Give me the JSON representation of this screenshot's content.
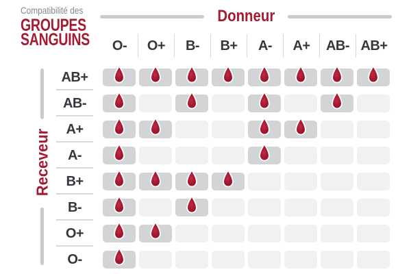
{
  "title": {
    "kicker": "Compatibilité des",
    "line1": "GROUPES",
    "line2": "SANGUINS"
  },
  "chart_data": {
    "type": "table",
    "title": "Compatibilité des GROUPES SANGUINS",
    "columns_axis_label": "Donneur",
    "rows_axis_label": "Receveur",
    "columns": [
      "O-",
      "O+",
      "B-",
      "B+",
      "A-",
      "A+",
      "AB-",
      "AB+"
    ],
    "rows": [
      "AB+",
      "AB-",
      "A+",
      "A-",
      "B+",
      "B-",
      "O+",
      "O-"
    ],
    "matrix": [
      [
        1,
        1,
        1,
        1,
        1,
        1,
        1,
        1
      ],
      [
        1,
        0,
        1,
        0,
        1,
        0,
        1,
        0
      ],
      [
        1,
        1,
        0,
        0,
        1,
        1,
        0,
        0
      ],
      [
        1,
        0,
        0,
        0,
        1,
        0,
        0,
        0
      ],
      [
        1,
        1,
        1,
        1,
        0,
        0,
        0,
        0
      ],
      [
        1,
        0,
        1,
        0,
        0,
        0,
        0,
        0
      ],
      [
        1,
        1,
        0,
        0,
        0,
        0,
        0,
        0
      ],
      [
        1,
        0,
        0,
        0,
        0,
        0,
        0,
        0
      ]
    ],
    "compatible_marker": "blood-drop-icon",
    "legend_position": "none",
    "grid": "cells"
  },
  "colors": {
    "background": "#ffffff",
    "red": "#a31c32",
    "title_gray": "#86888a",
    "label_dark": "#34383c",
    "cell_filled": "#d2d4d5",
    "cell_empty": "#f1f1f2",
    "axis_line": "#c9cbcc",
    "separator": "#d7d8d9",
    "drop_highlight": "#c12c44",
    "drop_main": "#a3172f",
    "drop_edge": "#8e1026",
    "drop_stroke": "#ffffff"
  }
}
